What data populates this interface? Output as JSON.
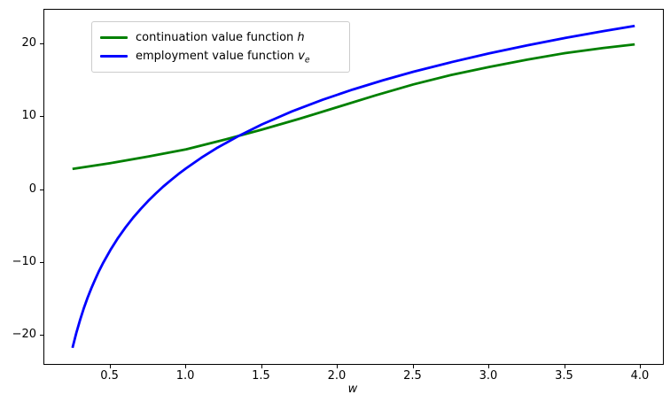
{
  "figure": {
    "background": "#ffffff"
  },
  "colors": {
    "continuation": "#008000",
    "employment": "#0000ff",
    "spine": "#000000",
    "legend_border": "#cccccc"
  },
  "legend": {
    "items": [
      {
        "color": "#008000",
        "text": "continuation value function ",
        "math": "h",
        "sub": ""
      },
      {
        "color": "#0000ff",
        "text": "employment value function ",
        "math": "v",
        "sub": "e"
      }
    ]
  },
  "chart_data": {
    "type": "line",
    "title": "",
    "xlabel": "w",
    "ylabel": "",
    "xlim": [
      0.064,
      4.146
    ],
    "ylim": [
      -23.86,
      24.75
    ],
    "grid": false,
    "legend_position": "upper left",
    "xtick_values": [
      0.5,
      1.0,
      1.5,
      2.0,
      2.5,
      3.0,
      3.5,
      4.0
    ],
    "xtick_labels": [
      "0.5",
      "1.0",
      "1.5",
      "2.0",
      "2.5",
      "3.0",
      "3.5",
      "4.0"
    ],
    "ytick_values": [
      -20,
      -10,
      0,
      10,
      20
    ],
    "ytick_labels": [
      "−20",
      "−10",
      "0",
      "10",
      "20"
    ],
    "series": [
      {
        "name": "continuation value function h",
        "color": "#008000",
        "x": [
          0.25,
          0.5,
          0.75,
          1.0,
          1.25,
          1.5,
          1.75,
          2.0,
          2.25,
          2.5,
          2.75,
          3.0,
          3.25,
          3.5,
          3.75,
          3.96
        ],
        "y": [
          2.9,
          3.7,
          4.6,
          5.6,
          6.9,
          8.3,
          9.8,
          11.4,
          13.0,
          14.5,
          15.8,
          16.9,
          17.9,
          18.8,
          19.5,
          20.0
        ]
      },
      {
        "name": "employment value function v_e",
        "color": "#0000ff",
        "x": [
          0.25,
          0.275,
          0.3,
          0.325,
          0.35,
          0.375,
          0.4,
          0.425,
          0.45,
          0.5,
          0.55,
          0.6,
          0.65,
          0.7,
          0.75,
          0.8,
          0.85,
          0.9,
          0.95,
          1.0,
          1.1,
          1.2,
          1.35,
          1.5,
          1.7,
          1.9,
          2.1,
          2.3,
          2.5,
          2.75,
          3.0,
          3.25,
          3.5,
          3.75,
          3.96
        ],
        "y": [
          -21.65,
          -19.61,
          -17.81,
          -16.2,
          -14.75,
          -13.43,
          -12.23,
          -11.11,
          -10.08,
          -8.22,
          -6.58,
          -5.11,
          -3.79,
          -2.58,
          -1.48,
          -0.45,
          0.5,
          1.38,
          2.22,
          3.0,
          4.44,
          5.74,
          7.47,
          9.01,
          10.81,
          12.39,
          13.8,
          15.08,
          16.24,
          17.56,
          18.76,
          19.85,
          20.87,
          21.8,
          22.54
        ]
      }
    ]
  }
}
